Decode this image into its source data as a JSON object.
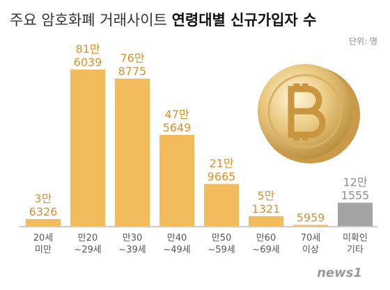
{
  "chart_data": {
    "type": "bar",
    "title": "주요 암호화폐 거래사이트",
    "title_bold": "연령대별 신규가입자 수",
    "unit": "단위: 명",
    "source": "news1",
    "categories": [
      "20세 미만",
      "만20 ~29세",
      "만30 ~39세",
      "만40 ~49세",
      "만50 ~59세",
      "만60 ~69세",
      "70세 이상",
      "미확인 기타"
    ],
    "values": [
      36326,
      816039,
      768775,
      475649,
      219665,
      51321,
      5959,
      121555
    ],
    "value_labels": [
      "3만 6326",
      "81만 6039",
      "76만 8775",
      "47만 5649",
      "21만 9665",
      "5만 1321",
      "5959",
      "12만 1555"
    ],
    "colors": [
      "#f2bb5c",
      "#f2bb5c",
      "#f2bb5c",
      "#f2bb5c",
      "#f2bb5c",
      "#f2bb5c",
      "#f2bb5c",
      "#a3a3a3"
    ],
    "label_colors": [
      "#d9922b",
      "#d9922b",
      "#d9922b",
      "#d9922b",
      "#d9922b",
      "#d9922b",
      "#d9922b",
      "#8f8f8f"
    ]
  }
}
